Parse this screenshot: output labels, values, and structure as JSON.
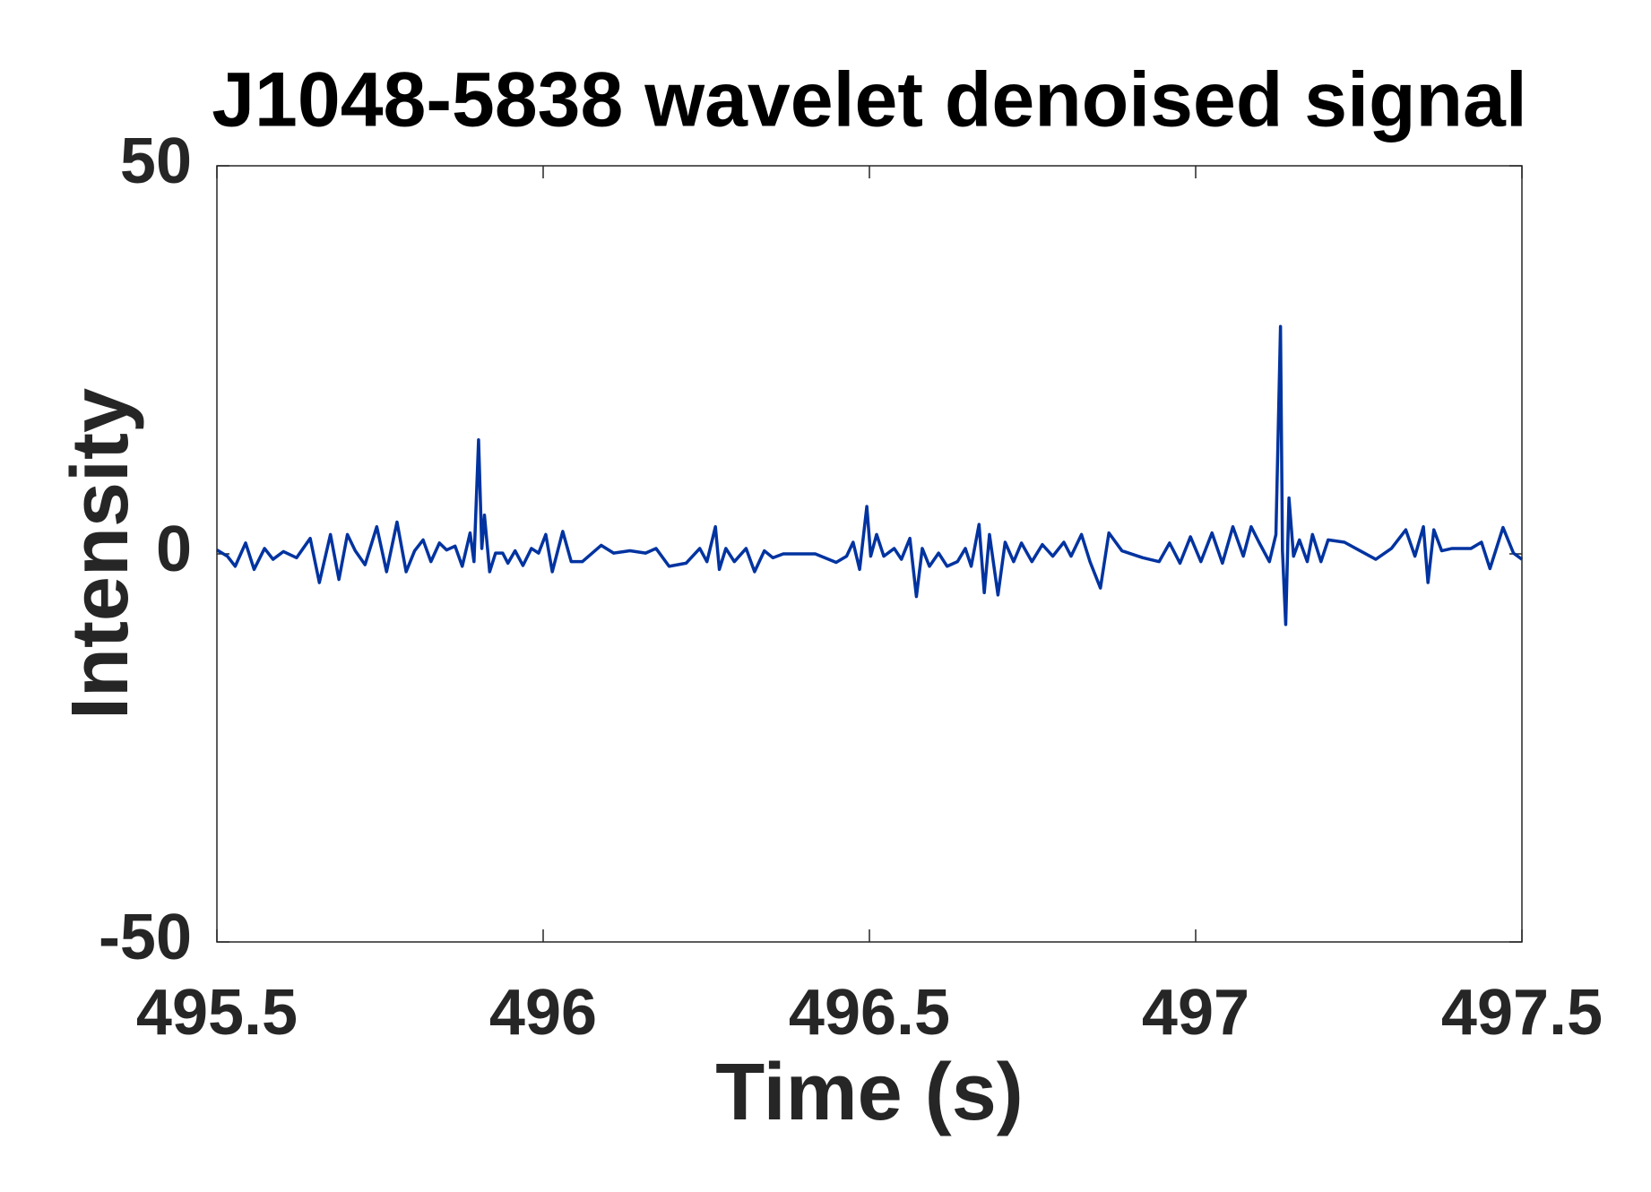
{
  "chart_data": {
    "type": "line",
    "title": "J1048-5838 wavelet denoised signal",
    "xlabel": "Time (s)",
    "ylabel": "Intensity",
    "x": [
      495.5,
      495.516,
      495.528,
      495.544,
      495.557,
      495.573,
      495.586,
      495.602,
      495.622,
      495.643,
      495.657,
      495.674,
      495.687,
      495.7,
      495.712,
      495.727,
      495.745,
      495.76,
      495.776,
      495.79,
      495.803,
      495.816,
      495.828,
      495.841,
      495.852,
      495.865,
      495.876,
      495.888,
      495.894,
      495.901,
      495.906,
      495.91,
      495.918,
      495.927,
      495.938,
      495.946,
      495.957,
      495.969,
      495.982,
      495.993,
      496.004,
      496.014,
      496.03,
      496.043,
      496.06,
      496.089,
      496.108,
      496.133,
      496.157,
      496.173,
      496.193,
      496.219,
      496.24,
      496.251,
      496.264,
      496.27,
      496.28,
      496.293,
      496.311,
      496.324,
      496.339,
      496.352,
      496.368,
      496.417,
      496.449,
      496.465,
      496.475,
      496.485,
      496.496,
      496.502,
      496.511,
      496.522,
      496.538,
      496.549,
      496.562,
      496.572,
      496.581,
      496.592,
      496.606,
      496.619,
      496.635,
      496.647,
      496.656,
      496.668,
      496.676,
      496.684,
      496.697,
      496.708,
      496.721,
      496.733,
      496.749,
      496.765,
      496.781,
      496.798,
      496.809,
      496.825,
      496.838,
      496.854,
      496.867,
      496.887,
      496.919,
      496.944,
      496.96,
      496.976,
      496.992,
      497.008,
      497.025,
      497.041,
      497.057,
      497.073,
      497.085,
      497.097,
      497.113,
      497.123,
      497.13,
      497.133,
      497.138,
      497.143,
      497.15,
      497.159,
      497.171,
      497.179,
      497.192,
      497.203,
      497.228,
      497.252,
      497.276,
      497.3,
      497.322,
      497.336,
      497.349,
      497.356,
      497.365,
      497.377,
      497.393,
      497.422,
      497.438,
      497.451,
      497.471,
      497.487,
      497.5
    ],
    "series": [
      {
        "name": "J1048-5838",
        "color": "#0033a0",
        "values": [
          0.5,
          -0.3,
          -1.6,
          1.4,
          -2.0,
          0.7,
          -0.7,
          0.3,
          -0.5,
          2.0,
          -3.7,
          2.5,
          -3.3,
          2.5,
          0.4,
          -1.4,
          3.5,
          -2.3,
          4.1,
          -2.3,
          0.4,
          1.8,
          -1.0,
          1.4,
          0.5,
          1.0,
          -1.6,
          2.7,
          -1.0,
          14.7,
          0.7,
          5.0,
          -2.3,
          0.1,
          0.1,
          -1.2,
          0.4,
          -1.5,
          0.7,
          0.1,
          2.5,
          -2.3,
          2.9,
          -1.0,
          -1.0,
          1.1,
          0.1,
          0.4,
          0.1,
          0.7,
          -1.6,
          -1.2,
          0.7,
          -1.0,
          3.5,
          -2.0,
          0.7,
          -1.0,
          0.7,
          -2.3,
          0.4,
          -0.5,
          0,
          0,
          -1.1,
          -0.3,
          1.5,
          -2.0,
          6.1,
          -0.3,
          2.5,
          -0.3,
          0.7,
          -0.7,
          2.0,
          -5.5,
          0.7,
          -1.6,
          0.1,
          -1.6,
          -1.0,
          0.7,
          -1.6,
          3.8,
          -5.0,
          2.5,
          -5.3,
          1.5,
          -1.0,
          1.4,
          -1.0,
          1.2,
          -0.3,
          1.5,
          -0.3,
          2.5,
          -1.0,
          -4.4,
          2.7,
          0.4,
          -0.5,
          -1.0,
          1.4,
          -1.2,
          2.2,
          -1.0,
          2.7,
          -1.2,
          3.5,
          -0.3,
          3.5,
          1.5,
          -1.0,
          2.5,
          29.3,
          0.4,
          -9.1,
          7.2,
          -0.3,
          1.8,
          -1.0,
          2.5,
          -1.0,
          1.8,
          1.5,
          0.4,
          -0.7,
          0.7,
          3.1,
          -0.3,
          3.5,
          -3.7,
          3.1,
          0.4,
          0.7,
          0.7,
          1.5,
          -1.9,
          3.4,
          0.1,
          -0.7
        ]
      }
    ],
    "xlim": [
      495.5,
      497.5
    ],
    "xticks": [
      495.5,
      496,
      496.5,
      497,
      497.5
    ],
    "ylim": [
      -50,
      50
    ],
    "yticks": [
      -50,
      0,
      50
    ],
    "grid": false
  }
}
